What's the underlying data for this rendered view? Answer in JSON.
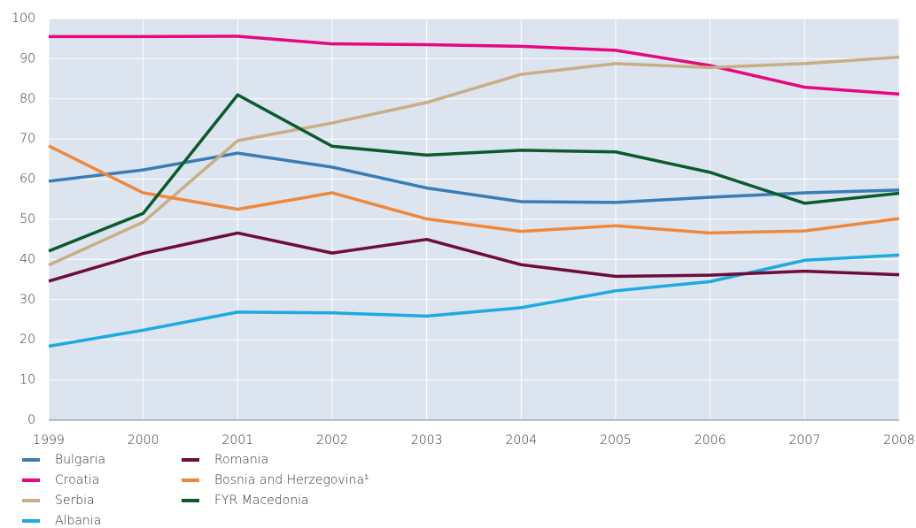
{
  "chart_data": {
    "type": "line",
    "x": [
      1999,
      2000,
      2001,
      2002,
      2003,
      2004,
      2005,
      2006,
      2007,
      2008
    ],
    "xlim": [
      1999,
      2008
    ],
    "xticks": [
      1999,
      2000,
      2001,
      2002,
      2003,
      2004,
      2005,
      2006,
      2007,
      2008
    ],
    "ylim": [
      0,
      100
    ],
    "yticks": [
      0,
      10,
      20,
      30,
      40,
      50,
      60,
      70,
      80,
      90,
      100
    ],
    "grid": true,
    "series": [
      {
        "name": "Bulgaria",
        "color": "#3b7cb5",
        "values": [
          59.5,
          62.3,
          66.5,
          63,
          57.8,
          54.4,
          54.2,
          55.5,
          56.6,
          57.3
        ]
      },
      {
        "name": "Croatia",
        "color": "#e5087f",
        "values": [
          95.5,
          95.5,
          95.6,
          93.7,
          93.5,
          93.1,
          92.1,
          88.3,
          82.9,
          81.2
        ]
      },
      {
        "name": "Serbia",
        "color": "#c8ae86",
        "values": [
          38.6,
          49.3,
          69.6,
          74,
          79.1,
          86.1,
          88.8,
          87.8,
          88.8,
          90.4
        ]
      },
      {
        "name": "Albania",
        "color": "#1caae1",
        "values": [
          18.4,
          22.4,
          26.9,
          26.7,
          25.9,
          28,
          32.2,
          34.5,
          39.8,
          41.1
        ]
      },
      {
        "name": "Romania",
        "color": "#6e0c3c",
        "values": [
          34.6,
          41.5,
          46.6,
          41.6,
          45,
          38.7,
          35.8,
          36.1,
          37.1,
          36.2
        ]
      },
      {
        "name": "Bosnia and Herzegovina¹",
        "color": "#f0883b",
        "values": [
          68.3,
          56.6,
          52.5,
          56.6,
          50.1,
          47,
          48.4,
          46.6,
          47.1,
          50.2
        ]
      },
      {
        "name": "FYR Macedonia",
        "color": "#0b5a2c",
        "values": [
          42.1,
          51.5,
          81,
          68.2,
          66,
          67.2,
          66.8,
          61.7,
          54,
          56.5
        ]
      }
    ]
  }
}
